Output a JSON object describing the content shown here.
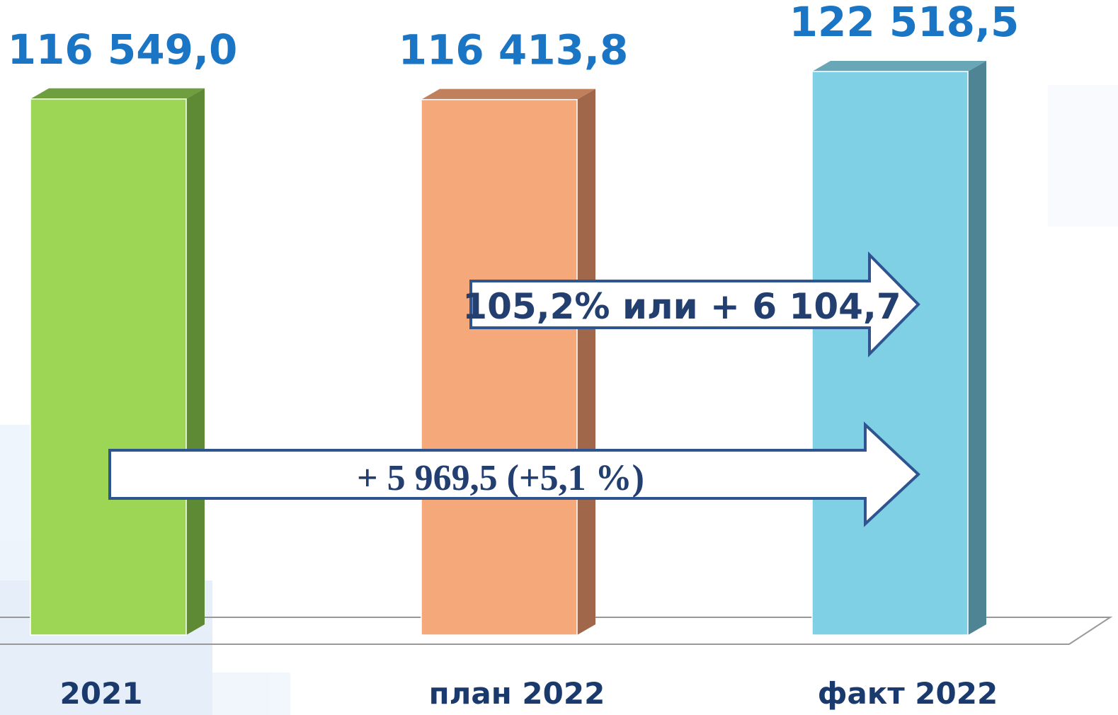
{
  "chart_data": {
    "type": "bar3d",
    "categories": [
      "2021",
      "план 2022",
      "факт 2022"
    ],
    "values": [
      116549.0,
      116413.8,
      122518.5
    ],
    "value_labels": [
      "116 549,0",
      "116 413,8",
      "122 518,5"
    ],
    "colors": [
      "#9dd654",
      "#f5a87a",
      "#7fd0e4"
    ],
    "side_colors": [
      "#5f8a35",
      "#a0674a",
      "#4f8494"
    ],
    "top_colors": [
      "#6e9e3e",
      "#c0805c",
      "#6aa7b6"
    ],
    "annotations": [
      "105,2% или + 6 104,7",
      "+ 5 969,5 (+5,1 %)"
    ]
  }
}
